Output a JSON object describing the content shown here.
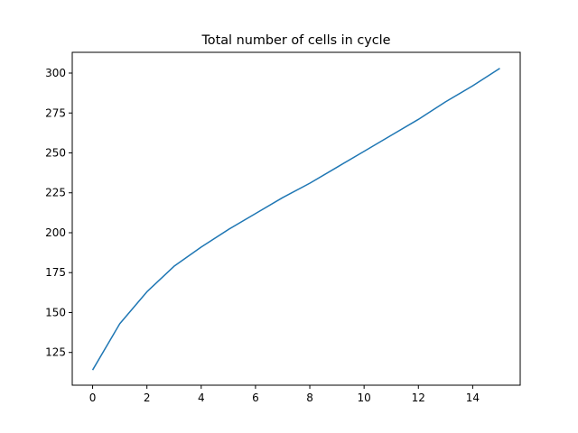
{
  "chart_data": {
    "type": "line",
    "title": "Total number of cells in cycle",
    "xlabel": "",
    "ylabel": "",
    "xlim": [
      -0.75,
      15.75
    ],
    "ylim": [
      104.5,
      313
    ],
    "grid": false,
    "x_ticks": [
      0,
      2,
      4,
      6,
      8,
      10,
      12,
      14
    ],
    "y_ticks": [
      125,
      150,
      175,
      200,
      225,
      250,
      275,
      300
    ],
    "series": [
      {
        "color": "#1f77b4",
        "x": [
          0,
          1,
          2,
          3,
          4,
          5,
          6,
          7,
          8,
          9,
          10,
          11,
          12,
          13,
          14,
          15
        ],
        "y": [
          114,
          143,
          163,
          179,
          191,
          202,
          212,
          222,
          231,
          241,
          251,
          261,
          271,
          282,
          292,
          303
        ]
      }
    ]
  }
}
